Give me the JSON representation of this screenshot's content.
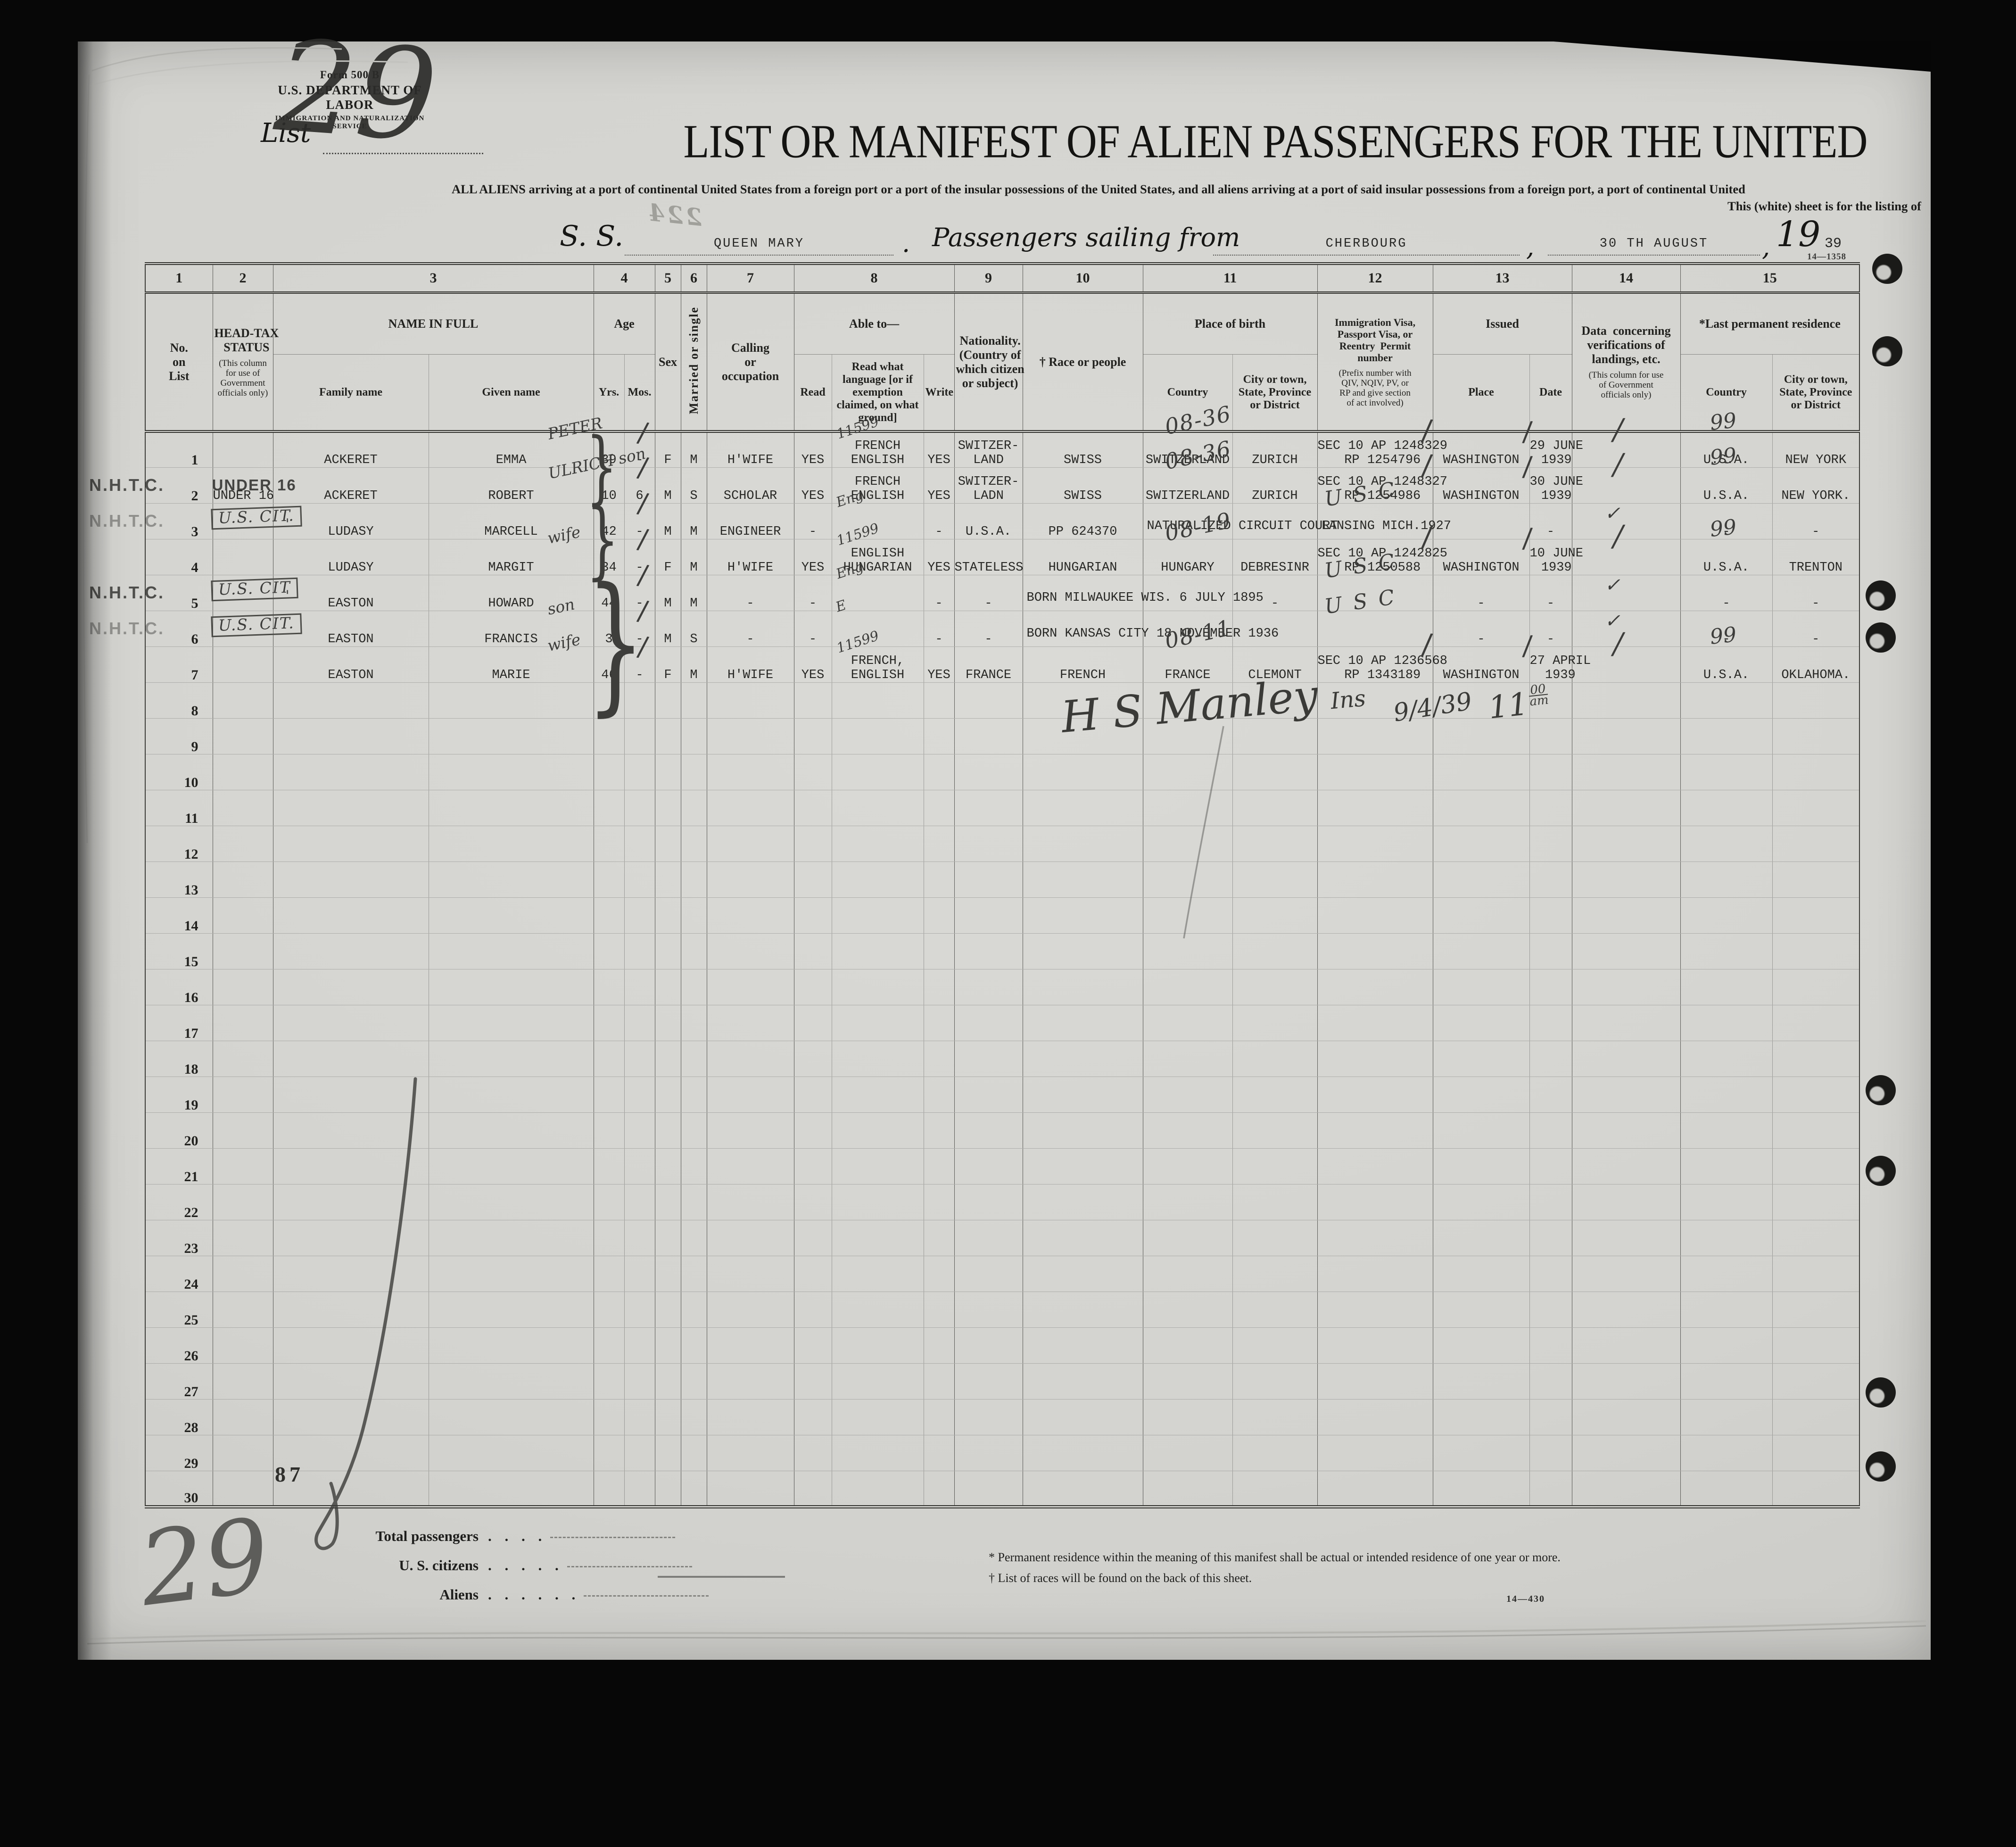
{
  "scan": {
    "code_top": "14—1358",
    "code_bottom": "14—430",
    "stamp_mirror": "224",
    "page_number_hw": "29",
    "tally_87": "87",
    "pencil_29": "29"
  },
  "header": {
    "form_line1": "Form 500 B",
    "form_line2": "U.S. DEPARTMENT OF LABOR",
    "form_line3": "IMMIGRATION AND NATURALIZATION SERVICE",
    "list_label": "List",
    "title": "LIST OR MANIFEST OF ALIEN PASSENGERS FOR THE UNITED",
    "subtitle": "ALL ALIENS arriving at a port of continental United States from a foreign port or a port of the insular possessions of the United States, and all aliens arriving at a port of said insular possessions from a foreign port, a port of continental United",
    "subtitle2": "This (white) sheet is for the listing of",
    "ss_label": "S. S.",
    "ship": "QUEEN MARY",
    "period": ".",
    "sailing_label": "Passengers sailing from",
    "port": "CHERBOURG",
    "comma": ",",
    "sail_date": "30 TH AUGUST",
    "year_printed": "19",
    "year_typed": "39"
  },
  "columns": {
    "numbers": [
      "1",
      "2",
      "3",
      "4",
      "5",
      "6",
      "7",
      "8",
      "9",
      "10",
      "11",
      "12",
      "13",
      "14",
      "15"
    ],
    "c1": {
      "label": "No.\non\nList"
    },
    "c2": {
      "label": "HEAD-TAX\nSTATUS",
      "note": "(This column\nfor use of\nGovernment\nofficials only)"
    },
    "c3": {
      "label": "NAME IN FULL",
      "subs": [
        "Family name",
        "Given name"
      ]
    },
    "c4": {
      "label": "Age",
      "subs": [
        "Yrs.",
        "Mos."
      ]
    },
    "c5": {
      "label": "Sex"
    },
    "c6": {
      "label": "Married or single"
    },
    "c7": {
      "label": "Calling\nor\noccupation"
    },
    "c8": {
      "label": "Able to—",
      "subs": [
        "Read",
        "Read what language [or\nif exemption claimed,\non what ground]",
        "Write"
      ]
    },
    "c9": {
      "label": "Nationality.\n(Country of\nwhich citizen\nor subject)"
    },
    "c10": {
      "label": "† Race or people"
    },
    "c11": {
      "label": "Place of birth",
      "subs": [
        "Country",
        "City or town,\nState, Province\nor District"
      ]
    },
    "c12": {
      "label": "Immigration Visa,\nPassport Visa, or\nReentry  Permit\nnumber",
      "note": "(Prefix number with\nQIV, NQIV, PV, or\nRP and give section\nof act involved)"
    },
    "c13": {
      "label": "Issued",
      "subs": [
        "Place",
        "Date"
      ]
    },
    "c14": {
      "label": "Data  concerning\nverifications of\nlandings, etc.",
      "note": "(This column for use\nof Government\nofficials only)"
    },
    "c15": {
      "label": "*Last permanent residence",
      "subs": [
        "Country",
        "City or town,\nState, Province\nor District"
      ]
    }
  },
  "rows": [
    {
      "n": "1",
      "family": "ACKERET",
      "given": "EMMA",
      "hw_given": "PETER",
      "yrs": "39",
      "mos": "-",
      "sex": "F",
      "hw_sex": "/",
      "mar": "M",
      "call": "H'WIFE",
      "read": "YES",
      "lang": "FRENCH\nENGLISH",
      "hw_lang": "11599",
      "write": "YES",
      "nat": "SWITZER-\nLAND",
      "race": "SWISS",
      "bco": "SWITZERLAND",
      "hw_bco": "08-36",
      "bci": "ZURICH",
      "visa": "SEC 10 AP 1248329\nRP 1254796",
      "hw_visa": "/",
      "place": "WASHINGTON",
      "hw_place": "/",
      "date": "29 JUNE\n1939",
      "hw_ver": "/",
      "rco": "U.S.A.",
      "hw_rco": "99",
      "rci": "NEW YORK"
    },
    {
      "n": "2",
      "stamp": "N.H.T.C.",
      "headtax": "UNDER 16",
      "family": "ACKERET",
      "given": "ROBERT",
      "hw_given": "ULRICH son",
      "yrs": "10",
      "mos": "6",
      "sex": "M",
      "hw_sex": "/",
      "mar": "S",
      "call": "SCHOLAR",
      "read": "YES",
      "lang": "FRENCH\nENGLISH",
      "write": "YES",
      "nat": "SWITZER-\nLADN",
      "race": "SWISS",
      "bco": "SWITZERLAND",
      "hw_bco": "08-36",
      "bci": "ZURICH",
      "visa": "SEC 10 AP 1248327\nRP 1254986",
      "hw_visa": "/",
      "place": "WASHINGTON",
      "hw_place": "/",
      "date": "30 JUNE\n1939",
      "hw_ver": "/",
      "rco": "U.S.A.",
      "hw_rco": "99",
      "rci": "NEW YORK."
    },
    {
      "n": "3",
      "stamp_faint": "N.H.T.C.",
      "headtax_box": "U.S. CIT.",
      "tick": "'",
      "family": "LUDASY",
      "given": "MARCELL",
      "yrs": "42",
      "mos": "-",
      "sex": "M",
      "hw_sex": "/",
      "mar": "M",
      "call": "ENGINEER",
      "read": "-",
      "hw_lang": "Eng",
      "write": "-",
      "nat": "U.S.A.",
      "race": "PP 624370",
      "bco": "NATURALIZED CIRCUIT COURT",
      "visa": "LANSING MICH.1927",
      "hw_visa2": "U S C",
      "date": "-",
      "hw_ver": "✓",
      "rco": "-",
      "rci": "-"
    },
    {
      "n": "4",
      "family": "LUDASY",
      "given": "MARGIT",
      "hw_given": "wife",
      "yrs": "34",
      "mos": "-",
      "sex": "F",
      "hw_sex": "/",
      "mar": "M",
      "call": "H'WIFE",
      "read": "YES",
      "lang": "ENGLISH\nHUNGARIAN",
      "hw_lang": "11599",
      "write": "YES",
      "nat": "STATELESS",
      "race": "HUNGARIAN",
      "bco": "HUNGARY",
      "hw_bco": "08-19",
      "bci": "DEBRESINR",
      "visa": "SEC 10 AP 1242825\nRP 1250588",
      "hw_visa": "/",
      "place": "WASHINGTON",
      "hw_place": "/",
      "date": "10 JUNE\n1939",
      "hw_ver": "/",
      "rco": "U.S.A.",
      "hw_rco": "99",
      "rci": "TRENTON"
    },
    {
      "n": "5",
      "stamp": "N.H.T.C.",
      "headtax_box": "U.S. CIT",
      "tick": "'",
      "family": "EASTON",
      "given": "HOWARD",
      "yrs": "44",
      "mos": "-",
      "sex": "M",
      "hw_sex": "/",
      "mar": "M",
      "call": "-",
      "read": "-",
      "hw_lang": "Eng",
      "write": "-",
      "nat": "-",
      "race": "BORN MILWAUKEE WIS. 6 JULY 1895",
      "bci": "-",
      "hw_visa2": "U S C",
      "place": "-",
      "date": "-",
      "hw_ver": "✓",
      "rco": "-",
      "rci": "-"
    },
    {
      "n": "6",
      "stamp_faint": "N.H.T.C.",
      "headtax_box": "U.S. CIT.",
      "family": "EASTON",
      "given": "FRANCIS",
      "hw_given": "son",
      "yrs": "3",
      "mos": "-",
      "sex": "M",
      "hw_sex": "/",
      "mar": "S",
      "call": "-",
      "read": "-",
      "hw_lang": "E",
      "write": "-",
      "nat": "-",
      "race": "BORN KANSAS CITY 18 NOVEMBER 1936",
      "hw_visa2": "U S C",
      "place": "-",
      "date": "-",
      "hw_ver": "✓",
      "rco": "-",
      "rci": "-"
    },
    {
      "n": "7",
      "family": "EASTON",
      "given": "MARIE",
      "hw_given": "wife",
      "yrs": "46",
      "mos": "-",
      "sex": "F",
      "hw_sex": "/",
      "mar": "M",
      "call": "H'WIFE",
      "read": "YES",
      "lang": "FRENCH,\nENGLISH",
      "hw_lang": "11599",
      "write": "YES",
      "nat": "FRANCE",
      "race": "FRENCH",
      "bco": "FRANCE",
      "hw_bco": "08-11",
      "bci": "CLEMONT",
      "visa": "SEC 10 AP 1236568\nRP 1343189",
      "hw_visa": "/",
      "place": "WASHINGTON",
      "hw_place": "/",
      "date": "27 APRIL\n1939",
      "hw_ver": "/",
      "rco": "U.S.A.",
      "hw_rco": "99",
      "rci": "OKLAHOMA."
    },
    {
      "n": "8"
    },
    {
      "n": "9"
    },
    {
      "n": "10"
    },
    {
      "n": "11"
    },
    {
      "n": "12"
    },
    {
      "n": "13"
    },
    {
      "n": "14"
    },
    {
      "n": "15"
    },
    {
      "n": "16"
    },
    {
      "n": "17"
    },
    {
      "n": "18"
    },
    {
      "n": "19"
    },
    {
      "n": "20"
    },
    {
      "n": "21"
    },
    {
      "n": "22"
    },
    {
      "n": "23"
    },
    {
      "n": "24"
    },
    {
      "n": "25"
    },
    {
      "n": "26"
    },
    {
      "n": "27"
    },
    {
      "n": "28"
    },
    {
      "n": "29"
    },
    {
      "n": "30"
    }
  ],
  "annotations": {
    "brace": "}",
    "signature": "H S Manley",
    "signature2": "Ins",
    "sig_date": "9/4/39",
    "sig_time_hr": "11",
    "sig_time_top": "00",
    "sig_time_bottom": "am"
  },
  "footer": {
    "totals": [
      {
        "label": "Total passengers",
        "dots": ". . . ."
      },
      {
        "label": "U. S. citizens",
        "dots": ". . . . ."
      },
      {
        "label": "Aliens",
        "dots": ". . . . . ."
      }
    ],
    "footnote1": "* Permanent residence within the meaning of this manifest shall be actual or intended residence of one year or more.",
    "footnote2": "† List of races will be found on the back of this sheet.",
    "code": "14—430"
  }
}
